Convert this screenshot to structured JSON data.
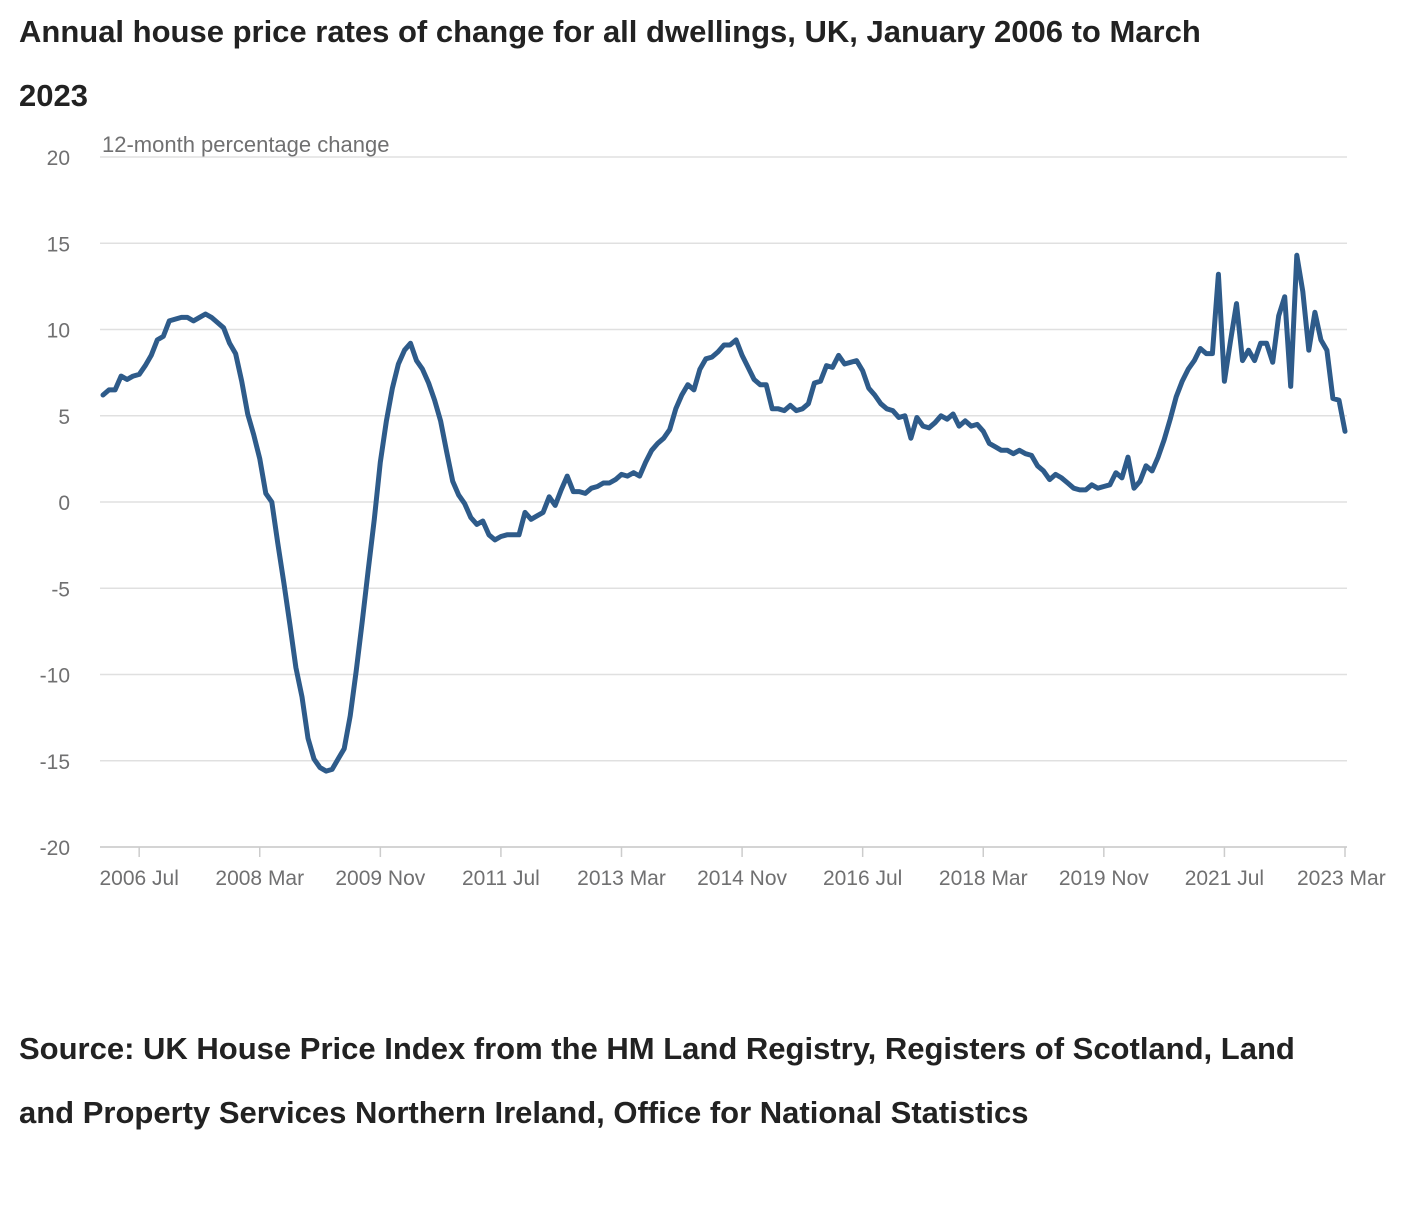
{
  "title": "Annual house price rates of change for all dwellings, UK, January 2006 to March 2023",
  "source": "Source: UK House Price Index from the HM Land Registry, Registers of Scotland, Land and Property Services Northern Ireland, Office for National Statistics",
  "colors": {
    "line": "#2e5b8a",
    "grid": "#e0e0e0",
    "axis_text": "#707071",
    "title": "#222222"
  },
  "chart_data": {
    "type": "line",
    "title": "Annual house price rates of change for all dwellings, UK, January 2006 to March 2023",
    "ylabel": "12-month percentage change",
    "xlabel": "",
    "ylim": [
      -20,
      20
    ],
    "yticks": [
      20,
      15,
      10,
      5,
      0,
      -5,
      -10,
      -15,
      -20
    ],
    "x_start": "2006 Jan",
    "x_end": "2023 Mar",
    "xticks": [
      {
        "label": "2006 Jul",
        "month_index": 6
      },
      {
        "label": "2008 Mar",
        "month_index": 26
      },
      {
        "label": "2009 Nov",
        "month_index": 46
      },
      {
        "label": "2011 Jul",
        "month_index": 66
      },
      {
        "label": "2013 Mar",
        "month_index": 86
      },
      {
        "label": "2014 Nov",
        "month_index": 106
      },
      {
        "label": "2016 Jul",
        "month_index": 126
      },
      {
        "label": "2018 Mar",
        "month_index": 146
      },
      {
        "label": "2019 Nov",
        "month_index": 166
      },
      {
        "label": "2021 Jul",
        "month_index": 186
      },
      {
        "label": "2023 Mar",
        "month_index": 206
      }
    ],
    "grid": true,
    "legend": "none",
    "series": [
      {
        "name": "UK all dwellings",
        "values": [
          6.2,
          6.5,
          6.5,
          7.3,
          7.1,
          7.3,
          7.4,
          7.9,
          8.5,
          9.4,
          9.6,
          10.5,
          10.6,
          10.7,
          10.7,
          10.5,
          10.7,
          10.9,
          10.7,
          10.4,
          10.1,
          9.2,
          8.6,
          7.0,
          5.1,
          3.9,
          2.5,
          0.5,
          0.0,
          -2.4,
          -4.7,
          -7.1,
          -9.6,
          -11.3,
          -13.7,
          -14.9,
          -15.4,
          -15.6,
          -15.5,
          -14.9,
          -14.3,
          -12.4,
          -9.8,
          -6.9,
          -3.9,
          -1.0,
          2.3,
          4.7,
          6.6,
          8.0,
          8.8,
          9.2,
          8.2,
          7.7,
          6.9,
          5.9,
          4.7,
          2.9,
          1.2,
          0.4,
          -0.1,
          -0.9,
          -1.3,
          -1.1,
          -1.9,
          -2.2,
          -2.0,
          -1.9,
          -1.9,
          -1.9,
          -0.6,
          -1.0,
          -0.8,
          -0.6,
          0.3,
          -0.2,
          0.7,
          1.5,
          0.6,
          0.6,
          0.5,
          0.8,
          0.9,
          1.1,
          1.1,
          1.3,
          1.6,
          1.5,
          1.7,
          1.5,
          2.3,
          3.0,
          3.4,
          3.7,
          4.2,
          5.4,
          6.2,
          6.8,
          6.5,
          7.7,
          8.3,
          8.4,
          8.7,
          9.1,
          9.1,
          9.4,
          8.5,
          7.8,
          7.1,
          6.8,
          6.8,
          5.4,
          5.4,
          5.3,
          5.6,
          5.3,
          5.4,
          5.7,
          6.9,
          7.0,
          7.9,
          7.8,
          8.5,
          8.0,
          8.1,
          8.2,
          7.6,
          6.6,
          6.2,
          5.7,
          5.4,
          5.3,
          4.9,
          5.0,
          3.7,
          4.9,
          4.4,
          4.3,
          4.6,
          5.0,
          4.8,
          5.1,
          4.4,
          4.7,
          4.4,
          4.5,
          4.1,
          3.4,
          3.2,
          3.0,
          3.0,
          2.8,
          3.0,
          2.8,
          2.7,
          2.1,
          1.8,
          1.3,
          1.6,
          1.4,
          1.1,
          0.8,
          0.7,
          0.7,
          1.0,
          0.8,
          0.9,
          1.0,
          1.7,
          1.4,
          2.6,
          0.8,
          1.2,
          2.1,
          1.8,
          2.6,
          3.6,
          4.8,
          6.1,
          7.0,
          7.7,
          8.2,
          8.9,
          8.6,
          8.6,
          13.2,
          7.0,
          9.3,
          11.5,
          8.2,
          8.8,
          8.2,
          9.2,
          9.2,
          8.1,
          10.8,
          11.9,
          6.7,
          14.3,
          12.2,
          8.8,
          11.0,
          9.4,
          8.8,
          6.0,
          5.9,
          4.1
        ]
      }
    ]
  }
}
